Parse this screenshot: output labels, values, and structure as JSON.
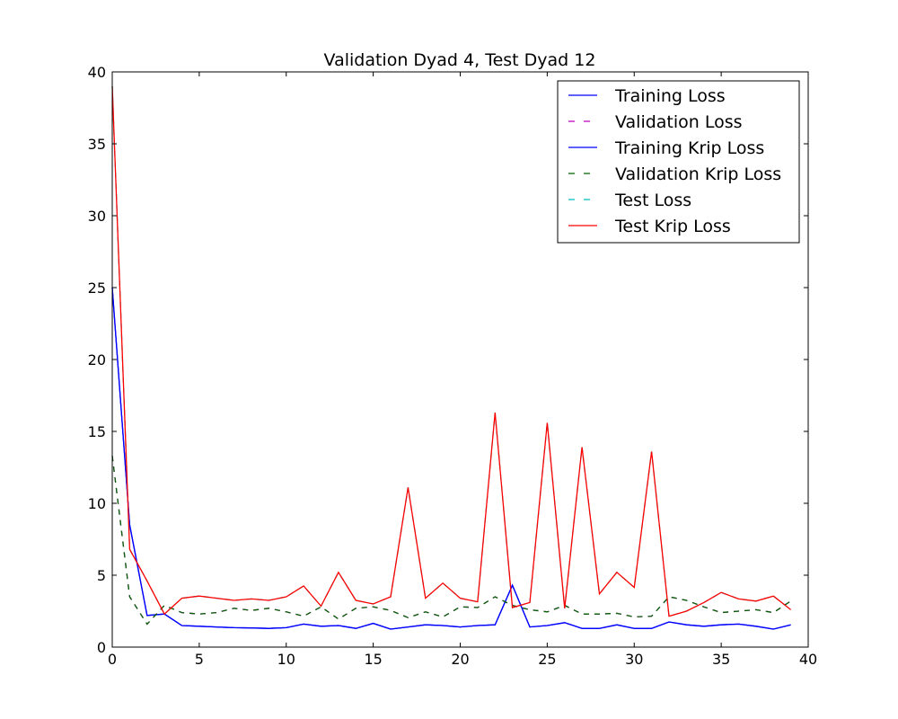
{
  "chart_data": {
    "type": "line",
    "title": "Validation Dyad 4, Test Dyad 12",
    "xlabel": "",
    "ylabel": "",
    "xlim": [
      0,
      40
    ],
    "ylim": [
      0,
      40
    ],
    "xticks": [
      0,
      5,
      10,
      15,
      20,
      25,
      30,
      35,
      40
    ],
    "yticks": [
      0,
      5,
      10,
      15,
      20,
      25,
      30,
      35,
      40
    ],
    "legend_position": "top-right",
    "x": [
      0,
      1,
      2,
      3,
      4,
      5,
      6,
      7,
      8,
      9,
      10,
      11,
      12,
      13,
      14,
      15,
      16,
      17,
      18,
      19,
      20,
      21,
      22,
      23,
      24,
      25,
      26,
      27,
      28,
      29,
      30,
      31,
      32,
      33,
      34,
      35,
      36,
      37,
      38,
      39
    ],
    "series": [
      {
        "name": "Training Loss",
        "color": "#0000ff",
        "style": "solid",
        "values": [
          25.0,
          8.5,
          2.2,
          2.3,
          1.5,
          1.45,
          1.4,
          1.35,
          1.33,
          1.3,
          1.35,
          1.6,
          1.45,
          1.5,
          1.3,
          1.65,
          1.25,
          1.4,
          1.55,
          1.5,
          1.4,
          1.5,
          1.55,
          4.3,
          1.4,
          1.5,
          1.7,
          1.3,
          1.3,
          1.55,
          1.3,
          1.3,
          1.75,
          1.55,
          1.45,
          1.55,
          1.6,
          1.45,
          1.25,
          1.55
        ]
      },
      {
        "name": "Validation Loss",
        "color": "#bf00bf",
        "style": "dashed",
        "values": [
          13.3,
          3.5,
          1.6,
          2.9,
          2.4,
          2.3,
          2.4,
          2.7,
          2.55,
          2.7,
          2.45,
          2.15,
          2.8,
          1.95,
          2.7,
          2.8,
          2.55,
          2.05,
          2.45,
          2.1,
          2.8,
          2.75,
          3.5,
          2.9,
          2.6,
          2.45,
          2.9,
          2.3,
          2.3,
          2.35,
          2.1,
          2.15,
          3.5,
          3.25,
          2.8,
          2.4,
          2.5,
          2.6,
          2.4,
          3.2
        ]
      },
      {
        "name": "Training Krip Loss",
        "color": "#0000ff",
        "style": "solid",
        "values": [
          25.0,
          8.5,
          2.2,
          2.3,
          1.5,
          1.45,
          1.4,
          1.35,
          1.33,
          1.3,
          1.35,
          1.6,
          1.45,
          1.5,
          1.3,
          1.65,
          1.25,
          1.4,
          1.55,
          1.5,
          1.4,
          1.5,
          1.55,
          4.3,
          1.4,
          1.5,
          1.7,
          1.3,
          1.3,
          1.55,
          1.3,
          1.3,
          1.75,
          1.55,
          1.45,
          1.55,
          1.6,
          1.45,
          1.25,
          1.55
        ]
      },
      {
        "name": "Validation Krip Loss",
        "color": "#006400",
        "style": "dashed",
        "values": [
          13.3,
          3.5,
          1.6,
          2.9,
          2.4,
          2.3,
          2.4,
          2.7,
          2.55,
          2.7,
          2.45,
          2.15,
          2.8,
          1.95,
          2.7,
          2.8,
          2.55,
          2.05,
          2.45,
          2.1,
          2.8,
          2.75,
          3.5,
          2.9,
          2.6,
          2.45,
          2.9,
          2.3,
          2.3,
          2.35,
          2.1,
          2.15,
          3.5,
          3.25,
          2.8,
          2.4,
          2.5,
          2.6,
          2.4,
          3.2
        ]
      },
      {
        "name": "Test Loss",
        "color": "#00bfbf",
        "style": "dashed",
        "values": [
          39.0,
          6.8,
          4.6,
          2.3,
          3.4,
          3.55,
          3.4,
          3.25,
          3.35,
          3.25,
          3.5,
          4.25,
          2.85,
          5.2,
          3.25,
          3.0,
          3.5,
          11.1,
          3.4,
          4.45,
          3.4,
          3.15,
          16.3,
          2.75,
          3.1,
          15.6,
          2.7,
          13.9,
          3.7,
          5.2,
          4.15,
          13.6,
          2.15,
          2.5,
          3.1,
          3.8,
          3.35,
          3.2,
          3.55,
          2.6
        ]
      },
      {
        "name": "Test Krip Loss",
        "color": "#ff0000",
        "style": "solid",
        "values": [
          39.0,
          6.8,
          4.6,
          2.3,
          3.4,
          3.55,
          3.4,
          3.25,
          3.35,
          3.25,
          3.5,
          4.25,
          2.85,
          5.2,
          3.25,
          3.0,
          3.5,
          11.1,
          3.4,
          4.45,
          3.4,
          3.15,
          16.3,
          2.75,
          3.1,
          15.6,
          2.7,
          13.9,
          3.7,
          5.2,
          4.15,
          13.6,
          2.15,
          2.5,
          3.1,
          3.8,
          3.35,
          3.2,
          3.55,
          2.6
        ]
      }
    ]
  }
}
